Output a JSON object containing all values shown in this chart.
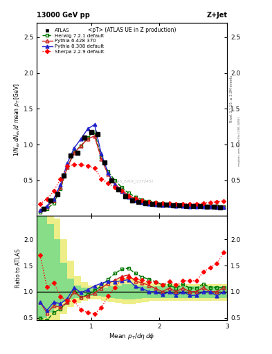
{
  "title_top": "13000 GeV pp",
  "title_right": "Z+Jet",
  "plot_title": "<pT> (ATLAS UE in Z production)",
  "xlabel": "Mean $p_T/d\\eta\\,d\\phi$",
  "ylabel_main": "$1/N_{ev}\\,dN_{ev}/d$ mean $p_T$ [GeV]",
  "ylabel_ratio": "Ratio to ATLAS",
  "watermark": "ATLAS_2019_I1772451",
  "x_ATLAS": [
    0.3,
    0.4,
    0.5,
    0.6,
    0.7,
    0.8,
    0.9,
    1.0,
    1.1,
    1.2,
    1.3,
    1.4,
    1.5,
    1.6,
    1.7,
    1.8,
    1.9,
    2.0,
    2.1,
    2.2,
    2.3,
    2.4,
    2.5,
    2.6,
    2.7,
    2.8,
    2.9
  ],
  "y_ATLAS": [
    0.1,
    0.22,
    0.3,
    0.57,
    0.85,
    0.88,
    1.1,
    1.17,
    1.15,
    0.75,
    0.5,
    0.37,
    0.28,
    0.22,
    0.2,
    0.18,
    0.17,
    0.16,
    0.16,
    0.15,
    0.15,
    0.14,
    0.14,
    0.14,
    0.13,
    0.13,
    0.12
  ],
  "x_mc": [
    0.25,
    0.35,
    0.45,
    0.55,
    0.65,
    0.75,
    0.85,
    0.95,
    1.05,
    1.15,
    1.25,
    1.35,
    1.45,
    1.55,
    1.65,
    1.75,
    1.85,
    1.95,
    2.05,
    2.15,
    2.25,
    2.35,
    2.45,
    2.55,
    2.65,
    2.75,
    2.85,
    2.95
  ],
  "y_herwig": [
    0.05,
    0.1,
    0.18,
    0.38,
    0.68,
    0.9,
    0.98,
    1.1,
    1.17,
    0.83,
    0.62,
    0.5,
    0.4,
    0.32,
    0.27,
    0.23,
    0.21,
    0.19,
    0.18,
    0.17,
    0.16,
    0.16,
    0.15,
    0.15,
    0.15,
    0.14,
    0.14,
    0.13
  ],
  "y_pythia6": [
    0.08,
    0.13,
    0.22,
    0.4,
    0.68,
    0.88,
    0.98,
    1.08,
    1.12,
    0.8,
    0.58,
    0.45,
    0.36,
    0.29,
    0.24,
    0.21,
    0.19,
    0.17,
    0.16,
    0.16,
    0.15,
    0.15,
    0.14,
    0.14,
    0.14,
    0.13,
    0.13,
    0.13
  ],
  "y_pythia8": [
    0.08,
    0.14,
    0.24,
    0.44,
    0.74,
    0.95,
    1.08,
    1.22,
    1.28,
    0.87,
    0.6,
    0.44,
    0.34,
    0.27,
    0.22,
    0.19,
    0.17,
    0.16,
    0.15,
    0.15,
    0.14,
    0.14,
    0.13,
    0.13,
    0.13,
    0.13,
    0.12,
    0.12
  ],
  "y_sherpa": [
    0.17,
    0.24,
    0.35,
    0.52,
    0.7,
    0.72,
    0.72,
    0.7,
    0.67,
    0.52,
    0.46,
    0.4,
    0.35,
    0.28,
    0.25,
    0.22,
    0.2,
    0.19,
    0.18,
    0.18,
    0.17,
    0.17,
    0.17,
    0.17,
    0.18,
    0.19,
    0.2,
    0.21
  ],
  "x_ratio": [
    0.25,
    0.35,
    0.45,
    0.55,
    0.65,
    0.75,
    0.85,
    0.95,
    1.05,
    1.15,
    1.25,
    1.35,
    1.45,
    1.55,
    1.65,
    1.75,
    1.85,
    1.95,
    2.05,
    2.15,
    2.25,
    2.35,
    2.45,
    2.55,
    2.65,
    2.75,
    2.85,
    2.95
  ],
  "ratio_herwig": [
    0.5,
    0.45,
    0.6,
    0.67,
    0.8,
    1.02,
    0.89,
    0.94,
    1.02,
    1.11,
    1.24,
    1.35,
    1.43,
    1.45,
    1.35,
    1.28,
    1.24,
    1.19,
    1.13,
    1.13,
    1.07,
    1.14,
    1.07,
    1.07,
    1.15,
    1.08,
    1.08,
    1.08
  ],
  "ratio_pythia6": [
    0.8,
    0.59,
    0.73,
    0.7,
    0.8,
    1.0,
    0.89,
    0.92,
    0.97,
    1.07,
    1.16,
    1.22,
    1.29,
    1.32,
    1.2,
    1.17,
    1.12,
    1.06,
    1.0,
    1.07,
    1.0,
    1.07,
    1.0,
    1.0,
    1.08,
    1.0,
    1.0,
    1.08
  ],
  "ratio_pythia8": [
    0.8,
    0.64,
    0.8,
    0.77,
    0.87,
    1.08,
    0.98,
    1.04,
    1.11,
    1.16,
    1.2,
    1.19,
    1.21,
    1.23,
    1.1,
    1.06,
    1.0,
    1.0,
    0.94,
    1.0,
    0.93,
    1.0,
    0.93,
    0.93,
    1.0,
    1.0,
    0.92,
    1.0
  ],
  "ratio_sherpa": [
    1.7,
    1.09,
    1.17,
    0.91,
    0.82,
    0.82,
    0.65,
    0.6,
    0.58,
    0.69,
    0.92,
    1.08,
    1.25,
    1.27,
    1.25,
    1.22,
    1.18,
    1.19,
    1.13,
    1.2,
    1.13,
    1.21,
    1.21,
    1.21,
    1.38,
    1.46,
    1.54,
    1.75
  ],
  "band_x": [
    0.2,
    0.3,
    0.4,
    0.5,
    0.6,
    0.7,
    0.8,
    0.9,
    1.0,
    1.1,
    1.2,
    1.3,
    1.4,
    1.5,
    1.6,
    1.7,
    1.8,
    1.9,
    2.0,
    2.1,
    2.2,
    2.3,
    2.4,
    2.5,
    2.6,
    2.7,
    2.8,
    2.9,
    3.0
  ],
  "band_inner_low": [
    0.5,
    0.5,
    0.6,
    0.7,
    0.8,
    0.85,
    0.88,
    0.9,
    0.92,
    0.92,
    0.9,
    0.88,
    0.86,
    0.85,
    0.85,
    0.86,
    0.88,
    0.88,
    0.88,
    0.88,
    0.88,
    0.88,
    0.88,
    0.88,
    0.88,
    0.88,
    0.88,
    0.88,
    0.88
  ],
  "band_inner_high": [
    2.5,
    2.5,
    2.3,
    2.0,
    1.55,
    1.25,
    1.12,
    1.08,
    1.06,
    1.06,
    1.08,
    1.1,
    1.12,
    1.14,
    1.14,
    1.12,
    1.1,
    1.1,
    1.1,
    1.1,
    1.1,
    1.1,
    1.1,
    1.1,
    1.1,
    1.1,
    1.1,
    1.1,
    1.1
  ],
  "band_outer_low": [
    0.2,
    0.2,
    0.25,
    0.4,
    0.58,
    0.7,
    0.78,
    0.82,
    0.85,
    0.85,
    0.82,
    0.8,
    0.78,
    0.76,
    0.76,
    0.78,
    0.8,
    0.82,
    0.82,
    0.82,
    0.82,
    0.82,
    0.82,
    0.82,
    0.82,
    0.82,
    0.82,
    0.82,
    0.82
  ],
  "band_outer_high": [
    2.5,
    2.5,
    2.5,
    2.4,
    2.0,
    1.6,
    1.3,
    1.18,
    1.12,
    1.12,
    1.16,
    1.2,
    1.24,
    1.26,
    1.26,
    1.22,
    1.18,
    1.16,
    1.15,
    1.15,
    1.15,
    1.15,
    1.15,
    1.15,
    1.15,
    1.15,
    1.15,
    1.15,
    1.15
  ],
  "color_ATLAS": "#000000",
  "color_herwig": "#007700",
  "color_pythia6": "#cc2222",
  "color_pythia8": "#2222cc",
  "color_sherpa": "#ff0000",
  "color_band_green": "#88dd88",
  "color_band_yellow": "#eeee88",
  "ylim_main": [
    0.0,
    2.7
  ],
  "ylim_ratio": [
    0.45,
    2.45
  ],
  "xlim": [
    0.2,
    3.0
  ],
  "yticks_main": [
    0.5,
    1.0,
    1.5,
    2.0,
    2.5
  ],
  "yticks_ratio": [
    0.5,
    1.0,
    1.5,
    2.0
  ],
  "xticks": [
    1,
    2,
    3
  ]
}
